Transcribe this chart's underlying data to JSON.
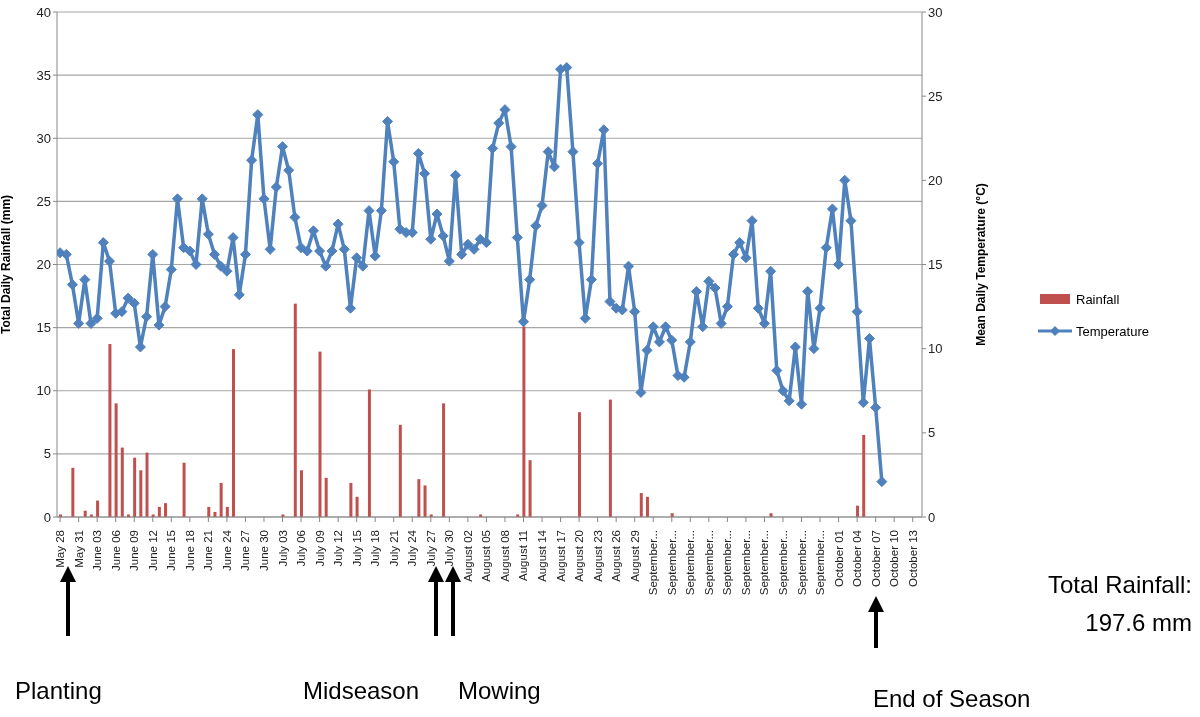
{
  "chart_data": {
    "type": "bar",
    "ylabel": "Total Daily Rainfall (mm)",
    "y2label": "Mean Daily Temperature (°C)",
    "categories": [
      "May 28",
      null,
      null,
      "May 31",
      null,
      null,
      "June 03",
      null,
      null,
      "June 06",
      null,
      null,
      "June 09",
      null,
      null,
      "June 12",
      null,
      null,
      "June 15",
      null,
      null,
      "June 18",
      null,
      null,
      "June 21",
      null,
      null,
      "June 24",
      null,
      null,
      "June 27",
      null,
      null,
      "June 30",
      null,
      null,
      "July 03",
      null,
      null,
      "July 06",
      null,
      null,
      "July 09",
      null,
      null,
      "July 12",
      null,
      null,
      "July 15",
      null,
      null,
      "July 18",
      null,
      null,
      "July 21",
      null,
      null,
      "July 24",
      null,
      null,
      "July 27",
      null,
      null,
      "July 30",
      null,
      null,
      "August 02",
      null,
      null,
      "August 05",
      null,
      null,
      "August 08",
      null,
      null,
      "August 11",
      null,
      null,
      "August 14",
      null,
      null,
      "August 17",
      null,
      null,
      "August 20",
      null,
      null,
      "August 23",
      null,
      null,
      "August 26",
      null,
      null,
      "August 29",
      null,
      null,
      "September...",
      null,
      null,
      "September...",
      null,
      null,
      "September...",
      null,
      null,
      "September...",
      null,
      null,
      "September...",
      null,
      null,
      "September...",
      null,
      null,
      "September...",
      null,
      null,
      "September...",
      null,
      null,
      "September...",
      null,
      null,
      "September...",
      null,
      null,
      "October 01",
      null,
      null,
      "October 04",
      null,
      null,
      "October 07",
      null,
      null,
      "October 10",
      null,
      null,
      "October 13",
      null
    ],
    "series": [
      {
        "name": "Rainfall",
        "color": "#c0504d",
        "values": [
          0.2,
          0,
          3.9,
          0,
          0.5,
          0.2,
          1.3,
          0,
          13.7,
          9.0,
          5.5,
          0.2,
          4.7,
          3.7,
          5.1,
          0.2,
          0.8,
          1.1,
          0,
          0,
          4.3,
          0,
          0,
          0,
          0.8,
          0.4,
          2.7,
          0.8,
          13.3,
          0,
          0,
          0,
          0,
          0,
          0,
          0,
          0.2,
          0,
          16.9,
          3.7,
          0,
          0,
          13.1,
          3.1,
          0,
          0,
          0,
          2.7,
          1.6,
          0,
          10.1,
          0,
          0,
          0,
          0,
          7.3,
          0,
          0,
          3.0,
          2.5,
          0.2,
          0,
          9.0,
          0,
          0,
          0,
          0,
          0,
          0.2,
          0,
          0,
          0,
          0,
          0,
          0.2,
          15.1,
          4.5,
          0,
          0,
          0,
          0,
          0,
          0,
          0,
          8.3,
          0,
          0,
          0,
          0,
          9.3,
          0,
          0,
          0,
          0,
          1.9,
          1.6,
          0,
          0,
          0,
          0.3,
          0,
          0,
          0,
          0,
          0,
          0,
          0,
          0,
          0,
          0,
          0,
          0,
          0,
          0,
          0,
          0.3,
          0,
          0,
          0,
          0,
          0,
          0,
          0,
          0,
          0,
          0,
          0,
          0,
          0,
          0.9,
          6.5,
          0,
          0,
          0,
          0,
          0,
          0,
          0,
          0,
          0
        ]
      },
      {
        "name": "Temperature",
        "type": "line",
        "axis": "y2",
        "color": "#4f81bd",
        "values": [
          15.7,
          15.6,
          13.8,
          11.5,
          14.1,
          11.5,
          11.8,
          16.3,
          15.2,
          12.1,
          12.2,
          13.0,
          12.7,
          10.1,
          11.9,
          15.6,
          11.4,
          12.5,
          14.7,
          18.9,
          16.0,
          15.8,
          15.0,
          18.9,
          16.8,
          15.6,
          14.9,
          14.6,
          16.6,
          13.2,
          15.6,
          21.2,
          23.9,
          18.9,
          15.9,
          19.6,
          22.0,
          20.6,
          17.8,
          16.0,
          15.8,
          17.0,
          15.8,
          14.9,
          15.8,
          17.4,
          15.9,
          12.4,
          15.4,
          14.9,
          18.2,
          15.5,
          18.2,
          23.5,
          21.1,
          17.1,
          16.9,
          16.9,
          21.6,
          20.4,
          16.5,
          18.0,
          16.7,
          15.2,
          20.3,
          15.6,
          16.2,
          15.9,
          16.5,
          16.3,
          21.9,
          23.4,
          24.2,
          22.0,
          16.6,
          11.6,
          14.1,
          17.3,
          18.5,
          21.7,
          20.8,
          26.6,
          26.7,
          21.7,
          16.3,
          11.8,
          14.1,
          21.0,
          23.0,
          12.8,
          12.4,
          12.3,
          14.9,
          12.2,
          7.4,
          9.9,
          11.3,
          10.4,
          11.3,
          10.5,
          8.4,
          8.3,
          10.4,
          13.4,
          11.3,
          14.0,
          13.6,
          11.5,
          12.5,
          15.6,
          16.3,
          15.4,
          17.6,
          12.4,
          11.5,
          14.6,
          8.7,
          7.5,
          6.9,
          10.1,
          6.7,
          13.4,
          10.0,
          12.4,
          16.0,
          18.3,
          15.0,
          20.0,
          17.6,
          12.2,
          6.8,
          10.6,
          6.5,
          2.1,
          null,
          null,
          null,
          null,
          null,
          null
        ]
      }
    ],
    "ylim": [
      0,
      40
    ],
    "yticks": [
      0,
      5,
      10,
      15,
      20,
      25,
      30,
      35,
      40
    ],
    "y2lim": [
      0,
      30
    ],
    "y2ticks": [
      0,
      5,
      10,
      15,
      20,
      25,
      30
    ],
    "grid": "y",
    "legend": "right",
    "marker": "diamond",
    "line_style": "solid",
    "annotations": [
      "Planting",
      "Midseason",
      "Mowing",
      "End of Season",
      "Total Rainfall: 197.6 mm"
    ]
  }
}
